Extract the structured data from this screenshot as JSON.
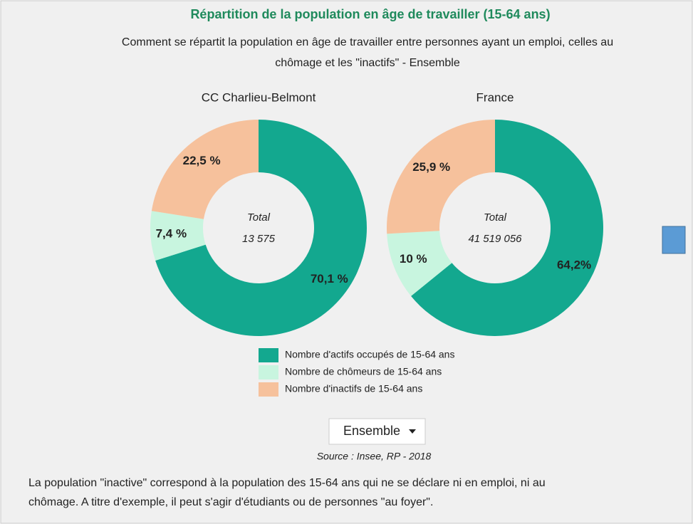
{
  "title": "Répartition de la population en âge de travailler (15-64 ans)",
  "subtitle": [
    "Comment se répartit la population en âge de travailler entre personnes ayant un emploi, celles au",
    "chômage et les \"inactifs\" - Ensemble"
  ],
  "chart_data": [
    {
      "type": "donut",
      "title": "CC Charlieu-Belmont",
      "center_label": "Total",
      "total": "13 575",
      "categories": [
        "Nombre d'actifs occupés de 15-64 ans",
        "Nombre de chômeurs de 15-64 ans",
        "Nombre d'inactifs de 15-64 ans"
      ],
      "values": [
        70.1,
        7.4,
        22.5
      ],
      "value_labels": [
        "70,1 %",
        "7,4 %",
        "22,5 %"
      ],
      "colors": [
        "#13a88f",
        "#c8f5df",
        "#f6c19c"
      ]
    },
    {
      "type": "donut",
      "title": "France",
      "center_label": "Total",
      "total": "41 519 056",
      "categories": [
        "Nombre d'actifs occupés de 15-64 ans",
        "Nombre de chômeurs de 15-64 ans",
        "Nombre d'inactifs de 15-64 ans"
      ],
      "values": [
        64.2,
        10,
        25.9
      ],
      "value_labels": [
        "64,2%",
        "10 %",
        "25,9 %"
      ],
      "colors": [
        "#13a88f",
        "#c8f5df",
        "#f6c19c"
      ]
    }
  ],
  "dropdown": "Ensemble",
  "source": "Source : Insee, RP - 2018",
  "note": [
    "La population \"inactive\" correspond à la population des 15-64 ans qui ne se déclare ni en emploi, ni au",
    "chômage. A titre d'exemple, il peut s'agir d'étudiants ou de personnes \"au foyer\"."
  ]
}
